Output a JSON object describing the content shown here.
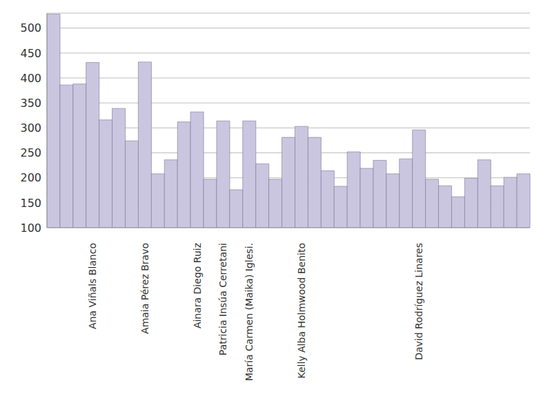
{
  "chart_data": {
    "type": "bar",
    "categories": [
      null,
      null,
      null,
      "Ana Viñals Blanco",
      null,
      null,
      null,
      "Amaia Pérez Bravo",
      null,
      null,
      null,
      "Ainara Diego Ruiz",
      null,
      "Patricia Insúa Cerretani",
      null,
      "María Carmen (Maika) Iglesi.",
      null,
      null,
      null,
      "Kelly Alba Holmwood Benito",
      null,
      null,
      null,
      null,
      null,
      null,
      null,
      null,
      "David Rodríguez Linares",
      null,
      null,
      null,
      null,
      null,
      null,
      null,
      null
    ],
    "values": [
      528,
      386,
      388,
      431,
      316,
      339,
      274,
      432,
      208,
      236,
      312,
      332,
      197,
      314,
      176,
      314,
      228,
      197,
      281,
      303,
      281,
      214,
      183,
      252,
      219,
      235,
      208,
      238,
      296,
      197,
      184,
      162,
      199,
      236,
      184,
      201,
      208
    ],
    "color": "#cbc6e0",
    "ylim": [
      100,
      530
    ],
    "yticks": [
      100,
      150,
      200,
      250,
      300,
      350,
      400,
      450,
      500
    ],
    "grid": true
  }
}
